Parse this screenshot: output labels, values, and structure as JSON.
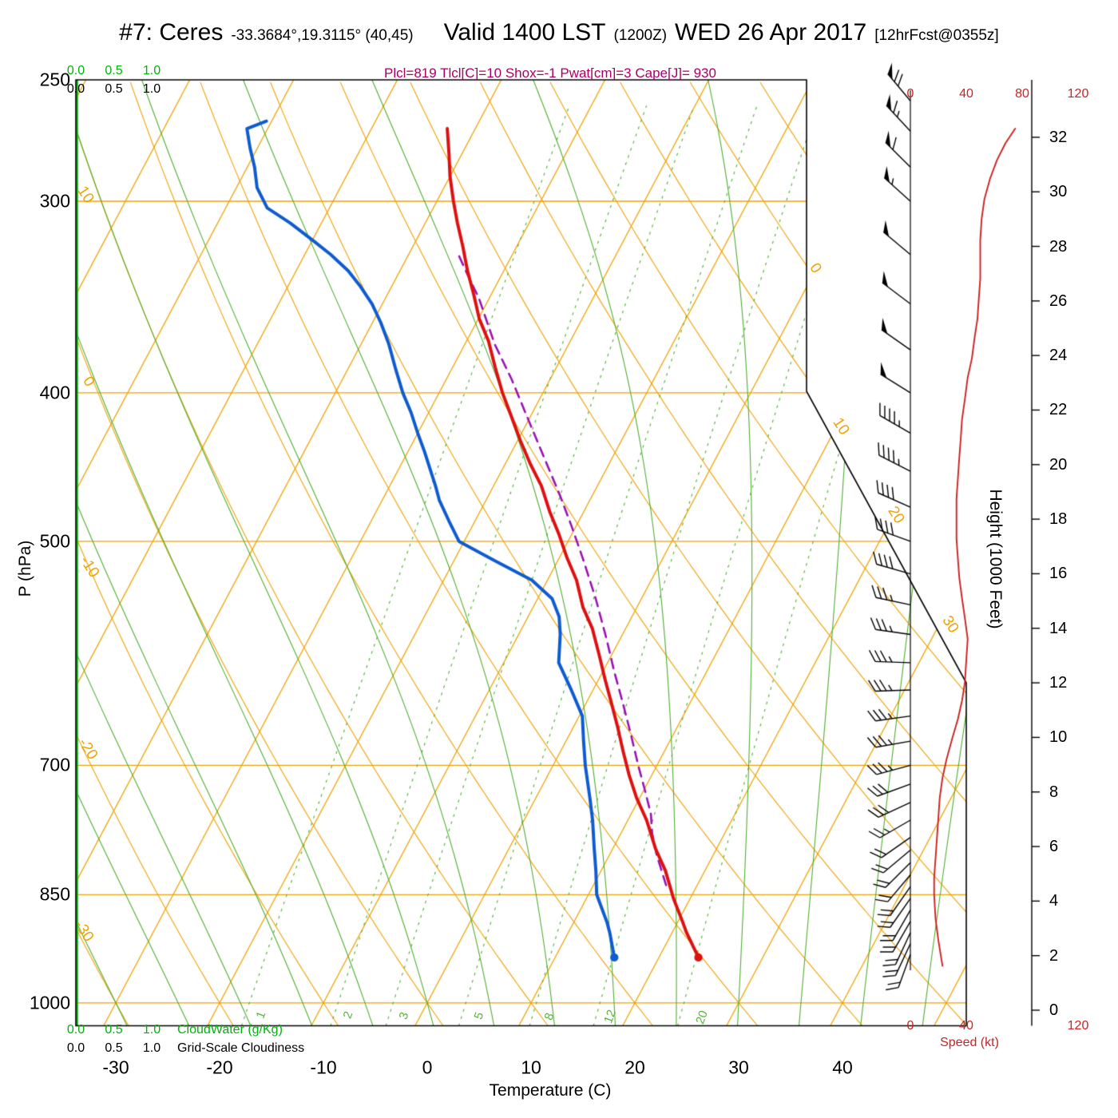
{
  "header": {
    "station_title": "#7: Ceres",
    "station_coords": "-33.3684°,19.3115° (40,45)",
    "valid_time": "Valid 1400 LST",
    "valid_zulu": "(1200Z)",
    "valid_date": "WED 26 Apr 2017",
    "forecast_note": "[12hrFcst@0355z]",
    "indices_line": "Plcl=819 Tlcl[C]=10 Shox=-1 Pwat[cm]=3 Cape[J]= 930",
    "indices": {
      "Plcl_hPa": 819,
      "Tlcl_C": 10,
      "Showalter": -1,
      "Pwat_cm": 3,
      "Cape_J": 930
    }
  },
  "axes": {
    "pressure": {
      "label": "P (hPa)",
      "ticks": [
        250,
        300,
        400,
        500,
        700,
        850,
        1000
      ],
      "scale": "log",
      "range": [
        250,
        1035
      ]
    },
    "temperature": {
      "label": "Temperature (C)",
      "ticks": [
        -30,
        -20,
        -10,
        0,
        10,
        20,
        30,
        40
      ]
    },
    "height": {
      "label": "Height (1000 Feet)",
      "ticks": [
        32,
        30,
        28,
        26,
        24,
        22,
        20,
        18,
        16,
        14,
        12,
        10,
        8,
        6,
        4,
        2,
        0
      ]
    },
    "speed": {
      "label": "Speed (kt)",
      "ticks_top": [
        0,
        40,
        80,
        120
      ],
      "ticks_bottom": [
        0,
        40,
        120
      ]
    },
    "cloudwater": {
      "label": "CloudWater (g/Kg)",
      "ticks": [
        "0.0",
        "0.5",
        "1.0"
      ]
    },
    "cloudiness": {
      "label": "Grid-Scale Cloudiness",
      "ticks": [
        "0.0",
        "0.5",
        "1.0"
      ]
    }
  },
  "chart_data": {
    "type": "line",
    "subtype": "skew-t log-p atmospheric sounding",
    "isobar_gridlines_hpa": [
      300,
      400,
      500,
      700,
      850,
      1000
    ],
    "isotherm_spacing_c": 10,
    "isotherm_exit_labels": [
      0,
      10,
      20,
      30
    ],
    "dry_adiabat_exit_labels": [
      10,
      0,
      -10,
      -20,
      -30
    ],
    "mixing_ratio_lines_g_kg": [
      1,
      2,
      3,
      5,
      8,
      12,
      20
    ],
    "temperature_profile_p_t": [
      [
        934,
        23.8
      ],
      [
        900,
        21.4
      ],
      [
        886,
        20.5
      ],
      [
        855,
        18.4
      ],
      [
        820,
        16.2
      ],
      [
        793,
        14.1
      ],
      [
        760,
        11.8
      ],
      [
        735,
        9.7
      ],
      [
        710,
        7.8
      ],
      [
        685,
        6.0
      ],
      [
        660,
        4.2
      ],
      [
        637,
        2.4
      ],
      [
        615,
        0.6
      ],
      [
        593,
        -1.2
      ],
      [
        570,
        -3.2
      ],
      [
        552,
        -5.2
      ],
      [
        530,
        -7.2
      ],
      [
        513,
        -9.2
      ],
      [
        495,
        -11.2
      ],
      [
        478,
        -13.3
      ],
      [
        460,
        -15.4
      ],
      [
        445,
        -17.6
      ],
      [
        430,
        -19.7
      ],
      [
        414,
        -21.9
      ],
      [
        400,
        -23.9
      ],
      [
        385,
        -25.9
      ],
      [
        370,
        -27.9
      ],
      [
        358,
        -29.9
      ],
      [
        345,
        -31.7
      ],
      [
        333,
        -33.5
      ],
      [
        321,
        -35.2
      ],
      [
        310,
        -36.9
      ],
      [
        300,
        -38.4
      ],
      [
        289,
        -40.0
      ],
      [
        279,
        -41.3
      ],
      [
        269,
        -42.7
      ]
    ],
    "dewpoint_profile_p_t": [
      [
        934,
        15.7
      ],
      [
        900,
        14.0
      ],
      [
        886,
        13.2
      ],
      [
        850,
        10.8
      ],
      [
        820,
        9.5
      ],
      [
        793,
        8.2
      ],
      [
        760,
        6.6
      ],
      [
        735,
        5.2
      ],
      [
        700,
        3.1
      ],
      [
        675,
        1.7
      ],
      [
        650,
        0.3
      ],
      [
        625,
        -2.1
      ],
      [
        600,
        -4.7
      ],
      [
        575,
        -6.0
      ],
      [
        560,
        -7.0
      ],
      [
        545,
        -8.6
      ],
      [
        530,
        -11.5
      ],
      [
        515,
        -16.0
      ],
      [
        500,
        -20.5
      ],
      [
        485,
        -22.5
      ],
      [
        470,
        -24.5
      ],
      [
        460,
        -25.6
      ],
      [
        450,
        -26.8
      ],
      [
        437,
        -28.4
      ],
      [
        425,
        -30.0
      ],
      [
        412,
        -31.7
      ],
      [
        400,
        -33.5
      ],
      [
        386,
        -35.4
      ],
      [
        372,
        -37.3
      ],
      [
        360,
        -39.2
      ],
      [
        350,
        -41.0
      ],
      [
        341,
        -43.0
      ],
      [
        333,
        -45.0
      ],
      [
        325,
        -47.5
      ],
      [
        318,
        -50.0
      ],
      [
        310,
        -53.0
      ],
      [
        303,
        -56.0
      ],
      [
        294,
        -58.0
      ],
      [
        285,
        -59.3
      ],
      [
        277,
        -60.7
      ],
      [
        269,
        -62.0
      ],
      [
        266,
        -60.5
      ]
    ],
    "parcel_path_p_t": [
      [
        838,
        17.0
      ],
      [
        800,
        14.5
      ],
      [
        775,
        13.0
      ],
      [
        753,
        11.9
      ],
      [
        725,
        10.0
      ],
      [
        700,
        8.2
      ],
      [
        668,
        5.9
      ],
      [
        637,
        3.5
      ],
      [
        608,
        1.1
      ],
      [
        579,
        -1.3
      ],
      [
        545,
        -4.4
      ],
      [
        513,
        -7.7
      ],
      [
        489,
        -10.4
      ],
      [
        466,
        -13.2
      ],
      [
        440,
        -16.7
      ],
      [
        414,
        -20.4
      ],
      [
        392,
        -23.7
      ],
      [
        372,
        -27.1
      ],
      [
        359,
        -29.1
      ],
      [
        347,
        -31.0
      ],
      [
        336,
        -33.1
      ],
      [
        325,
        -35.2
      ]
    ],
    "wind_speed_profile_p_kt": [
      [
        946,
        23
      ],
      [
        910,
        20
      ],
      [
        881,
        18
      ],
      [
        850,
        17
      ],
      [
        829,
        17
      ],
      [
        805,
        18
      ],
      [
        781,
        19
      ],
      [
        758,
        20
      ],
      [
        735,
        21
      ],
      [
        713,
        23
      ],
      [
        693,
        26
      ],
      [
        672,
        30
      ],
      [
        653,
        34
      ],
      [
        635,
        37
      ],
      [
        618,
        39
      ],
      [
        598,
        40
      ],
      [
        579,
        41
      ],
      [
        561,
        39
      ],
      [
        545,
        37
      ],
      [
        528,
        35
      ],
      [
        513,
        34
      ],
      [
        498,
        33
      ],
      [
        484,
        33
      ],
      [
        469,
        33
      ],
      [
        455,
        34
      ],
      [
        441,
        35
      ],
      [
        429,
        36
      ],
      [
        416,
        37
      ],
      [
        404,
        39
      ],
      [
        391,
        41
      ],
      [
        380,
        44
      ],
      [
        368,
        46
      ],
      [
        358,
        48
      ],
      [
        347,
        49
      ],
      [
        337,
        50
      ],
      [
        327,
        50
      ],
      [
        318,
        50
      ],
      [
        308,
        51
      ],
      [
        299,
        53
      ],
      [
        290,
        57
      ],
      [
        282,
        62
      ],
      [
        275,
        68
      ],
      [
        269,
        75
      ]
    ],
    "wind_barbs_p_kt_dir": [
      [
        930,
        20,
        200
      ],
      [
        915,
        20,
        205
      ],
      [
        900,
        20,
        205
      ],
      [
        885,
        18,
        210
      ],
      [
        870,
        18,
        210
      ],
      [
        855,
        18,
        215
      ],
      [
        840,
        18,
        215
      ],
      [
        825,
        18,
        220
      ],
      [
        810,
        20,
        225
      ],
      [
        795,
        20,
        230
      ],
      [
        780,
        22,
        235
      ],
      [
        760,
        25,
        240
      ],
      [
        740,
        28,
        245
      ],
      [
        720,
        30,
        250
      ],
      [
        700,
        33,
        255
      ],
      [
        675,
        34,
        260
      ],
      [
        650,
        34,
        262
      ],
      [
        625,
        33,
        268
      ],
      [
        600,
        34,
        272
      ],
      [
        575,
        36,
        278
      ],
      [
        550,
        37,
        282
      ],
      [
        525,
        38,
        286
      ],
      [
        500,
        39,
        290
      ],
      [
        475,
        42,
        294
      ],
      [
        450,
        44,
        297
      ],
      [
        425,
        46,
        300
      ],
      [
        400,
        48,
        302
      ],
      [
        375,
        50,
        305
      ],
      [
        350,
        50,
        307
      ],
      [
        325,
        52,
        310
      ],
      [
        300,
        55,
        312
      ],
      [
        285,
        60,
        315
      ],
      [
        270,
        65,
        317
      ],
      [
        258,
        70,
        320
      ]
    ],
    "surface_markers": {
      "temperature_dot_p_t": [
        934,
        23.8
      ],
      "dewpoint_dot_p_t": [
        934,
        15.7
      ]
    },
    "cloud_water_note": "cloud water 0.0 g/kg through column (green line hugging left edge)"
  },
  "colors": {
    "grid_orange": "#f0a202",
    "moist_green": "#4fae30",
    "mixing_green": "#57b63a",
    "cloudwater_green": "#00b40a",
    "temperature_red": "#dd1111",
    "dewpoint_blue": "#0f5cd0",
    "parcel_purple": "#9914b3",
    "speed_red": "#cc2222",
    "indices_magenta": "#aa0066",
    "axis_black": "#000000"
  }
}
